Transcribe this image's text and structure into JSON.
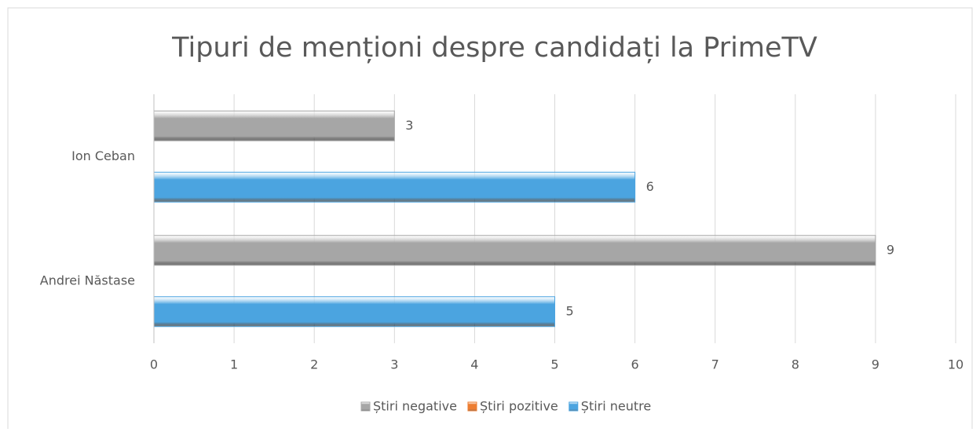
{
  "chart_data": {
    "type": "hbar",
    "title": "Tipuri de menționi despre candidați la PrimeTV",
    "categories": [
      "Andrei Năstase",
      "Ion Ceban"
    ],
    "series": [
      {
        "name": "Știri negative",
        "color": "#a6a6a6",
        "values": [
          9,
          3
        ]
      },
      {
        "name": "Știri pozitive",
        "color": "#ed7d31",
        "values": [
          null,
          null
        ]
      },
      {
        "name": "Știri neutre",
        "color": "#4ba4e0",
        "values": [
          5,
          6
        ]
      }
    ],
    "xlim": [
      0,
      10
    ],
    "xticks": [
      0,
      1,
      2,
      3,
      4,
      5,
      6,
      7,
      8,
      9,
      10
    ],
    "grid": true,
    "legend": "bottom"
  }
}
